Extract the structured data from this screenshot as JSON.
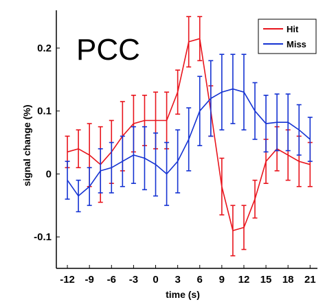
{
  "chart_data": {
    "type": "line",
    "title": "PCC",
    "xlabel": "time (s)",
    "ylabel": "signal change (%)",
    "xlim": [
      -13.5,
      22
    ],
    "ylim": [
      -0.15,
      0.26
    ],
    "xticks": [
      -12,
      -9,
      -6,
      -3,
      0,
      3,
      6,
      9,
      12,
      15,
      18,
      21
    ],
    "xtick_labels": [
      "-12",
      "-9",
      "-6",
      "-3",
      "0",
      "3",
      "6",
      "9",
      "12",
      "15",
      "18",
      "21"
    ],
    "yticks": [
      -0.1,
      0,
      0.1,
      0.2
    ],
    "ytick_labels": [
      "-0.1",
      "0",
      "0.1",
      "0.2"
    ],
    "legend_position": "top-right",
    "grid": false,
    "series": [
      {
        "name": "Hit",
        "color": "#e8141c",
        "x": [
          -12,
          -10.5,
          -9,
          -7.5,
          -6,
          -4.5,
          -3,
          -1.5,
          0,
          1.5,
          3,
          4.5,
          6,
          7.5,
          9,
          10.5,
          12,
          13.5,
          15,
          16.5,
          18,
          19.5,
          21
        ],
        "y": [
          0.035,
          0.04,
          0.03,
          0.015,
          0.035,
          0.06,
          0.08,
          0.085,
          0.085,
          0.085,
          0.13,
          0.21,
          0.215,
          0.1,
          -0.02,
          -0.09,
          -0.085,
          -0.04,
          0.02,
          0.04,
          0.03,
          0.02,
          0.015
        ],
        "err": [
          0.025,
          0.03,
          0.05,
          0.06,
          0.05,
          0.055,
          0.045,
          0.04,
          0.045,
          0.045,
          0.035,
          0.04,
          0.035,
          0.04,
          0.045,
          0.04,
          0.035,
          0.03,
          0.035,
          0.035,
          0.04,
          0.04,
          0.035
        ]
      },
      {
        "name": "Miss",
        "color": "#1432d2",
        "x": [
          -12,
          -10.5,
          -9,
          -7.5,
          -6,
          -4.5,
          -3,
          -1.5,
          0,
          1.5,
          3,
          4.5,
          6,
          7.5,
          9,
          10.5,
          12,
          13.5,
          15,
          16.5,
          18,
          19.5,
          21
        ],
        "y": [
          -0.01,
          -0.035,
          -0.02,
          0.005,
          0.01,
          0.02,
          0.03,
          0.025,
          0.015,
          0,
          0.02,
          0.055,
          0.1,
          0.12,
          0.13,
          0.135,
          0.13,
          0.1,
          0.08,
          0.082,
          0.082,
          0.07,
          0.055
        ],
        "err": [
          0.03,
          0.025,
          0.03,
          0.035,
          0.04,
          0.04,
          0.045,
          0.05,
          0.05,
          0.05,
          0.05,
          0.05,
          0.055,
          0.06,
          0.06,
          0.055,
          0.06,
          0.045,
          0.045,
          0.045,
          0.045,
          0.04,
          0.035
        ]
      }
    ]
  }
}
